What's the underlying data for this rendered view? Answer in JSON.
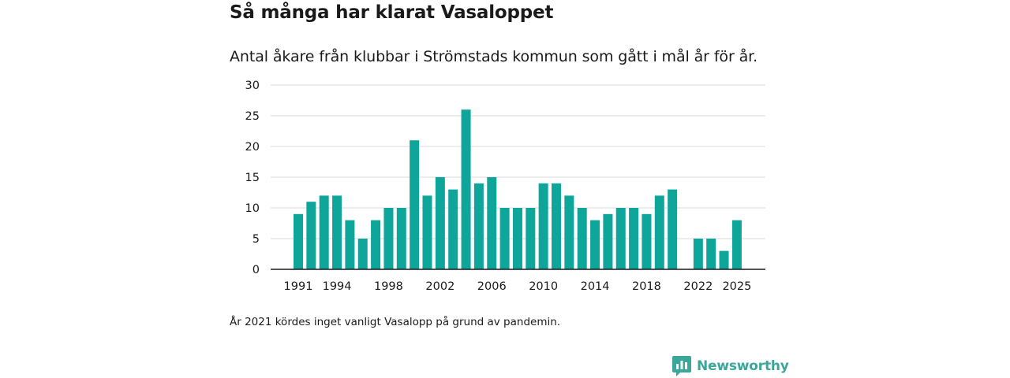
{
  "title": "Så många har klarat Vasaloppet",
  "subtitle": "Antal åkare från klubbar i Strömstads kommun som gått i mål år för år.",
  "note": "År 2021 kördes inget vanligt Vasalopp på grund av pandemin.",
  "brand": {
    "name": "Newsworthy",
    "color": "#3aa79a",
    "icon": "newsworthy-logo-icon"
  },
  "colors": {
    "bar": "#0ea59b",
    "grid": "#d8d8d8",
    "axis": "#1a1a1a"
  },
  "chart_data": {
    "type": "bar",
    "title": "Så många har klarat Vasaloppet",
    "subtitle": "Antal åkare från klubbar i Strömstads kommun som gått i mål år för år.",
    "xlabel": "",
    "ylabel": "",
    "ylim": [
      0,
      30
    ],
    "yticks": [
      0,
      5,
      10,
      15,
      20,
      25,
      30
    ],
    "grid": true,
    "categories": [
      1991,
      1992,
      1993,
      1994,
      1995,
      1996,
      1997,
      1998,
      1999,
      2000,
      2001,
      2002,
      2003,
      2004,
      2005,
      2006,
      2007,
      2008,
      2009,
      2010,
      2011,
      2012,
      2013,
      2014,
      2015,
      2016,
      2017,
      2018,
      2019,
      2020,
      2021,
      2022,
      2023,
      2024,
      2025
    ],
    "values": [
      9,
      11,
      12,
      12,
      8,
      5,
      8,
      10,
      10,
      21,
      12,
      15,
      13,
      26,
      14,
      15,
      10,
      10,
      10,
      14,
      14,
      12,
      10,
      8,
      9,
      10,
      10,
      9,
      12,
      13,
      0,
      5,
      5,
      3,
      8
    ],
    "xtick_labels": [
      "1991",
      "1994",
      "1998",
      "2002",
      "2006",
      "2010",
      "2014",
      "2018",
      "2022",
      "2025"
    ]
  }
}
